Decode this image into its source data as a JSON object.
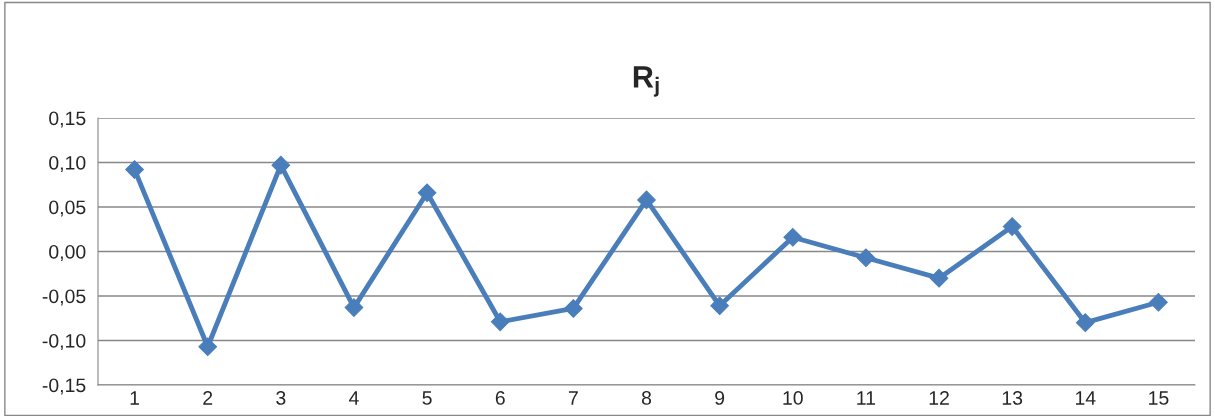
{
  "chart_data": {
    "type": "line",
    "title": "R$_{j}$",
    "categories": [
      "1",
      "2",
      "3",
      "4",
      "5",
      "6",
      "7",
      "8",
      "9",
      "10",
      "11",
      "12",
      "13",
      "14",
      "15"
    ],
    "series": [
      {
        "color": "#4a7ebb",
        "values": [
          0.092,
          -0.107,
          0.097,
          -0.063,
          0.066,
          -0.079,
          -0.064,
          0.058,
          -0.061,
          0.016,
          -0.007,
          -0.03,
          0.028,
          -0.08,
          -0.057
        ]
      }
    ],
    "ylim": [
      -0.15,
      0.15
    ],
    "yticks": [
      {
        "value": -0.15,
        "label": "-0,15"
      },
      {
        "value": -0.1,
        "label": "-0,10"
      },
      {
        "value": -0.05,
        "label": "-0,05"
      },
      {
        "value": 0,
        "label": "0,00"
      },
      {
        "value": 0.05,
        "label": "0,05"
      },
      {
        "value": 0.1,
        "label": "0,10"
      },
      {
        "value": 0.15,
        "label": "0,15"
      }
    ],
    "grid": "y",
    "marker": "diamond",
    "line_style": "solid"
  }
}
